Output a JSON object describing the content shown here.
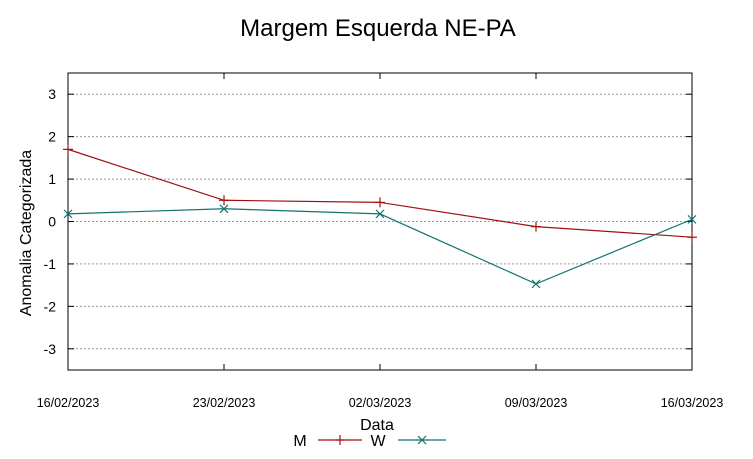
{
  "chart_data": {
    "type": "line",
    "title": "Margem Esquerda NE-PA",
    "xlabel": "Data",
    "ylabel": "Anomalia Categorizada",
    "categories": [
      "16/02/2023",
      "23/02/2023",
      "02/03/2023",
      "09/03/2023",
      "16/03/2023"
    ],
    "ylim": [
      -3.5,
      3.5
    ],
    "yticks": [
      3,
      2,
      1,
      0,
      -1,
      -2,
      -3
    ],
    "ytick_labels": [
      "3",
      "2",
      "1",
      "0",
      "-1",
      "-2",
      "-3"
    ],
    "grid": true,
    "legend": "bottom-center",
    "series": [
      {
        "name": "M",
        "color": "#a01010",
        "marker": "plus",
        "values": [
          1.7,
          0.5,
          0.45,
          -0.12,
          -0.37
        ]
      },
      {
        "name": "W",
        "color": "#127272",
        "marker": "cross",
        "values": [
          0.18,
          0.3,
          0.18,
          -1.47,
          0.05
        ]
      }
    ]
  }
}
